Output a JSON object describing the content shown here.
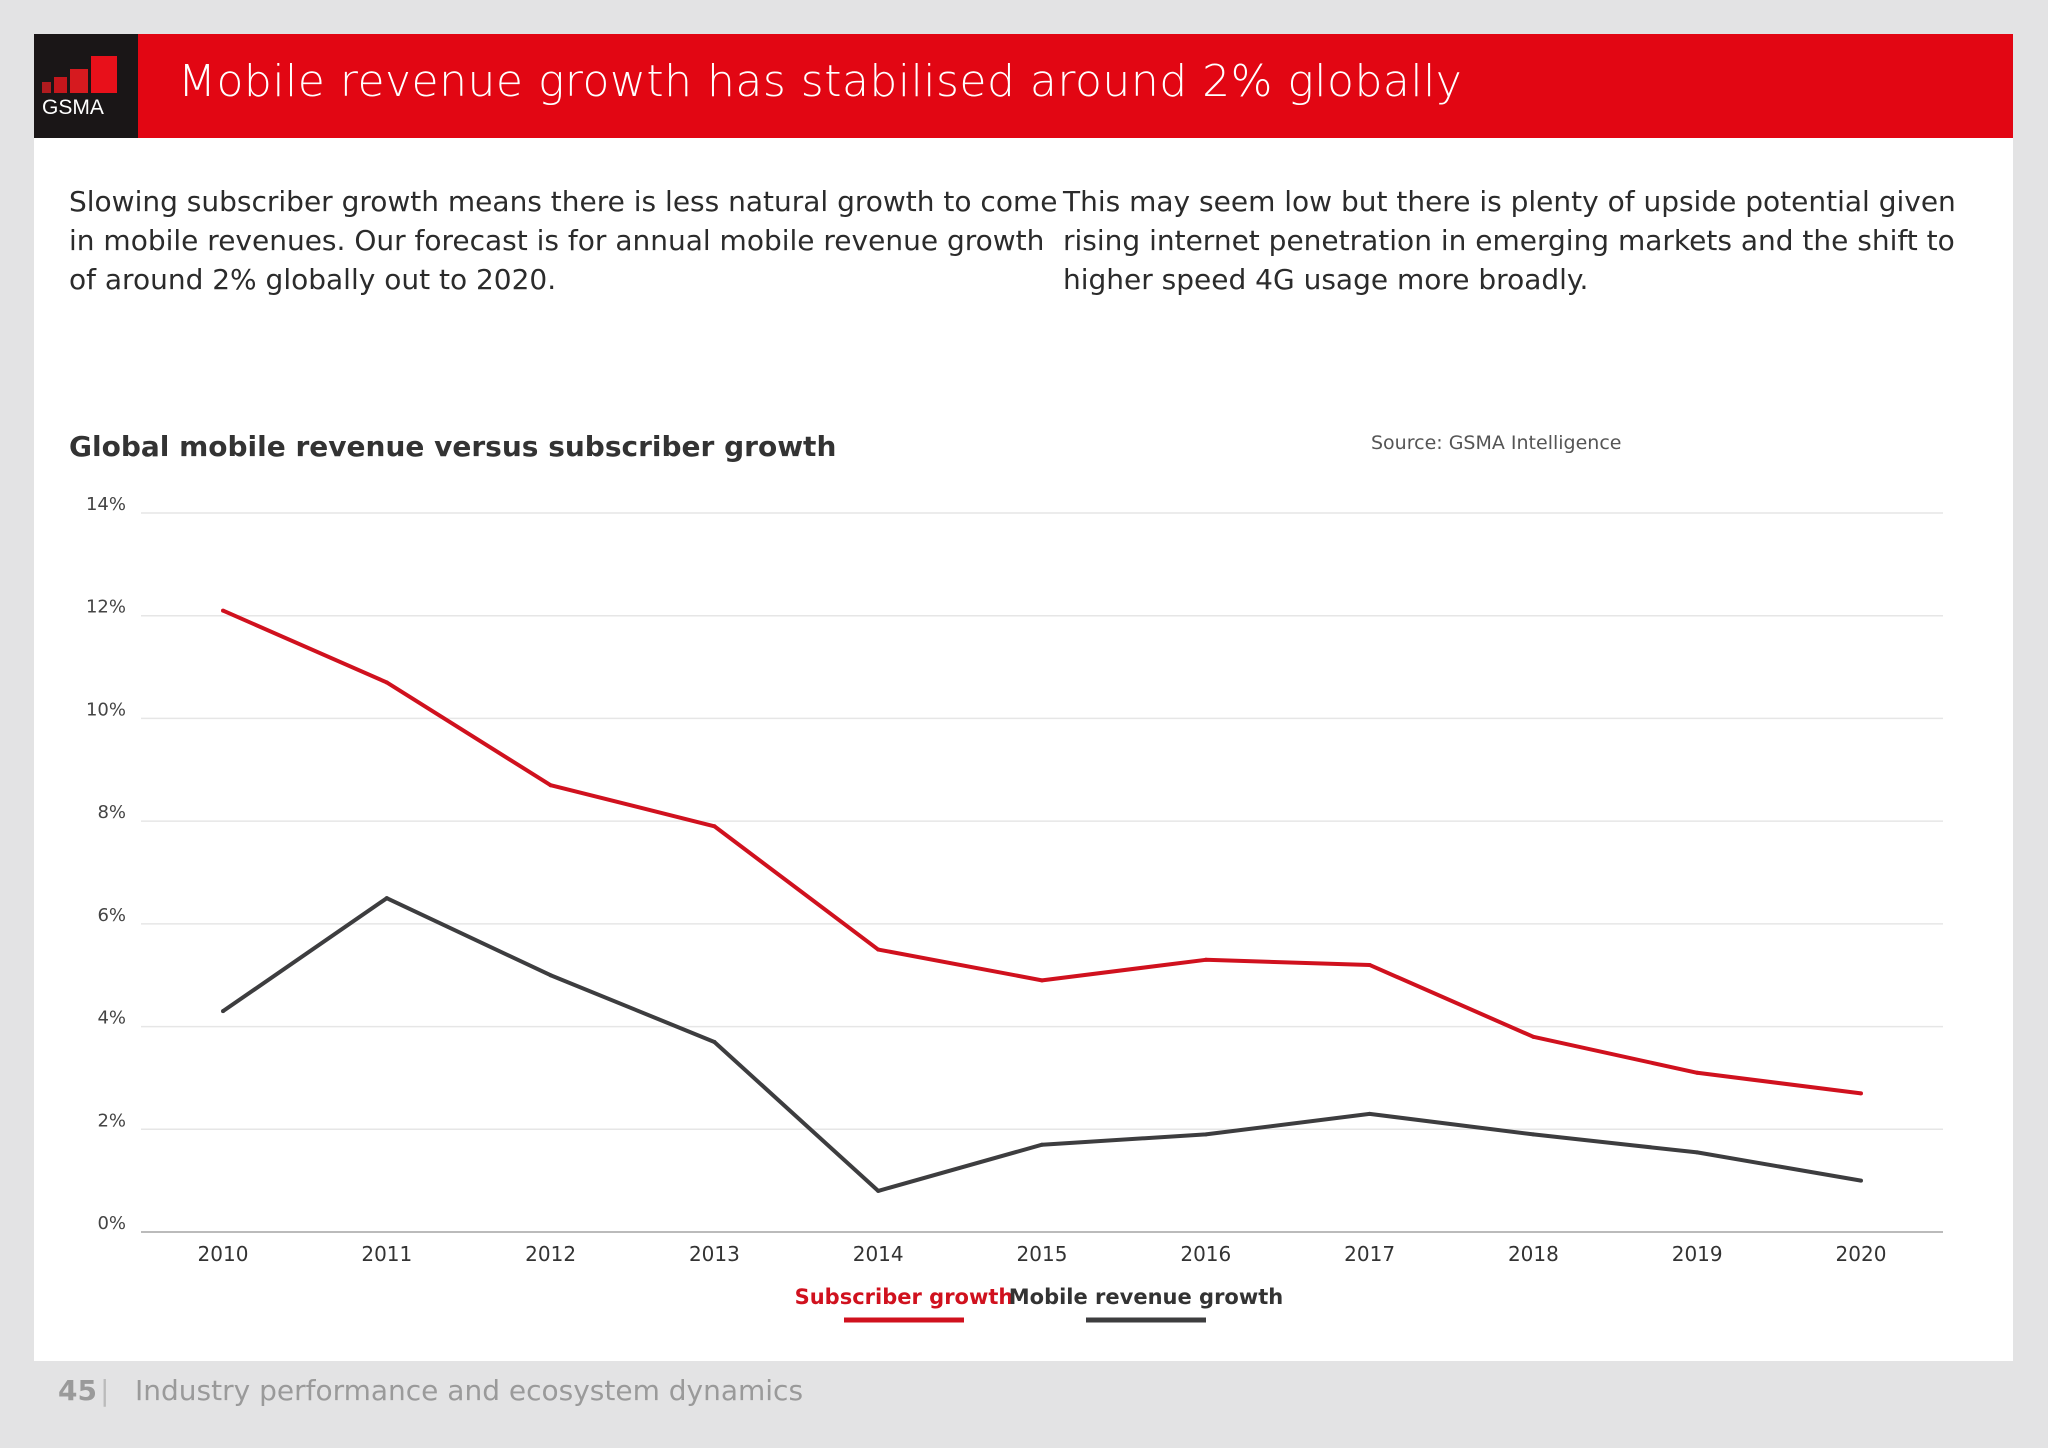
{
  "header": {
    "title": "Mobile revenue growth has stabilised around 2% globally",
    "logo_text": "GSMA"
  },
  "intro": {
    "left": "Slowing subscriber growth means there is less natural growth to come in mobile revenues. Our forecast is for annual mobile revenue growth of around 2% globally out to 2020.",
    "right": "This may seem low but there is plenty of upside potential given rising internet penetration in emerging markets and the shift to higher speed 4G usage more broadly."
  },
  "chart_data": {
    "type": "line",
    "title": "Global mobile revenue versus subscriber growth",
    "source": "Source: GSMA Intelligence",
    "x": [
      "2010",
      "2011",
      "2012",
      "2013",
      "2014",
      "2015",
      "2016",
      "2017",
      "2018",
      "2019",
      "2020"
    ],
    "yticks": [
      "0%",
      "2%",
      "4%",
      "6%",
      "8%",
      "10%",
      "12%",
      "14%"
    ],
    "ylim": [
      0,
      14
    ],
    "grid": true,
    "legend_placement": "bottom",
    "series": [
      {
        "name": "Subscriber growth",
        "color": "#d0111e",
        "values": [
          12.1,
          10.7,
          8.7,
          7.9,
          5.5,
          4.9,
          5.3,
          5.2,
          3.8,
          3.1,
          2.7
        ]
      },
      {
        "name": "Mobile revenue growth",
        "color": "#3d3d3f",
        "values": [
          4.3,
          6.5,
          5.0,
          3.7,
          0.8,
          1.7,
          1.9,
          2.3,
          1.9,
          1.55,
          1.0
        ]
      }
    ]
  },
  "footer": {
    "page_number": "45",
    "section": "Industry performance and ecosystem dynamics"
  }
}
